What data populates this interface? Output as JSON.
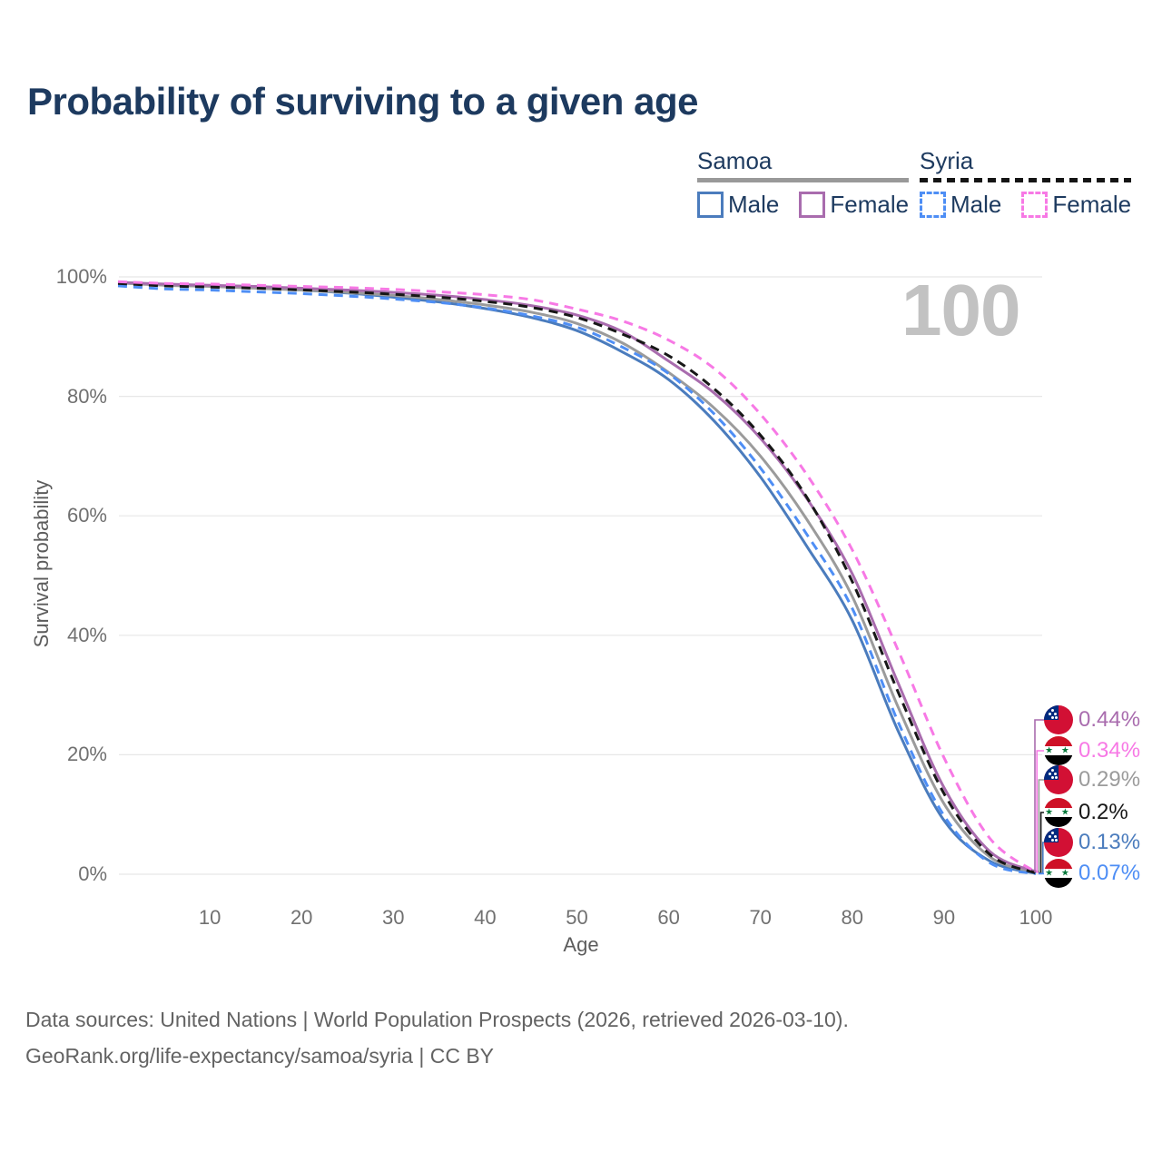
{
  "title": "Probability of surviving to a given age",
  "watermark": "100",
  "legend": {
    "groups": [
      {
        "country": "Samoa",
        "line_style": "solid",
        "underline_color": "#999999",
        "items": [
          {
            "label": "Male",
            "color": "#4b7cbd",
            "series": "samoa_male"
          },
          {
            "label": "Female",
            "color": "#a96cae",
            "series": "samoa_female"
          }
        ]
      },
      {
        "country": "Syria",
        "line_style": "dashed",
        "underline_color": "#141414",
        "items": [
          {
            "label": "Male",
            "color": "#4e8ef5",
            "series": "syria_male"
          },
          {
            "label": "Female",
            "color": "#f779e5",
            "series": "syria_female"
          }
        ]
      }
    ]
  },
  "axes": {
    "y_label": "Survival probability",
    "y_tick_values": [
      0,
      20,
      40,
      60,
      80,
      100
    ],
    "y_tick_labels": [
      "0%",
      "20%",
      "40%",
      "60%",
      "80%",
      "100%"
    ],
    "x_label": "Age",
    "x_tick_values": [
      10,
      20,
      30,
      40,
      50,
      60,
      70,
      80,
      90,
      100
    ],
    "x_tick_labels": [
      "10",
      "20",
      "30",
      "40",
      "50",
      "60",
      "70",
      "80",
      "90",
      "100"
    ]
  },
  "end_labels": [
    {
      "flag": "samoa",
      "text": "0.44%",
      "series": "samoa_female"
    },
    {
      "flag": "syria",
      "text": "0.34%",
      "series": "syria_female"
    },
    {
      "flag": "samoa",
      "text": "0.29%",
      "series": "samoa_all"
    },
    {
      "flag": "syria",
      "text": "0.2%",
      "series": "syria_all"
    },
    {
      "flag": "samoa",
      "text": "0.13%",
      "series": "samoa_male"
    },
    {
      "flag": "syria",
      "text": "0.07%",
      "series": "syria_male"
    }
  ],
  "footer": {
    "line1": "Data sources: United Nations | World Population Prospects (2026, retrieved 2026-03-10).",
    "line2": "GeoRank.org/life-expectancy/samoa/syria | CC BY"
  },
  "chart_data": {
    "type": "line",
    "title": "Probability of surviving to a given age",
    "xlabel": "Age",
    "ylabel": "Survival probability",
    "unit": "%",
    "xlim": [
      0,
      100
    ],
    "ylim": [
      0,
      100
    ],
    "grid": "horizontal",
    "legend_position": "top-right",
    "x": [
      0,
      5,
      10,
      15,
      20,
      25,
      30,
      35,
      40,
      45,
      50,
      55,
      60,
      65,
      70,
      75,
      80,
      85,
      90,
      95,
      100
    ],
    "series": [
      {
        "id": "samoa_male",
        "name": "Samoa Male",
        "country": "Samoa",
        "sex": "Male",
        "style": "solid",
        "color": "#4b7cbd",
        "end_label": "0.13%",
        "values": [
          99.0,
          98.7,
          98.5,
          98.2,
          97.8,
          97.3,
          96.6,
          95.8,
          94.7,
          93.2,
          91.0,
          87.4,
          82.8,
          75.8,
          66.5,
          55.0,
          42.5,
          24.0,
          9.0,
          2.2,
          0.13
        ]
      },
      {
        "id": "samoa_all",
        "name": "Samoa",
        "country": "Samoa",
        "sex": "All",
        "style": "solid",
        "color": "#9b9b9b",
        "end_label": "0.29%",
        "values": [
          99.0,
          98.6,
          98.4,
          98.1,
          97.8,
          97.4,
          96.9,
          96.2,
          95.3,
          94.1,
          92.2,
          88.9,
          84.0,
          78.0,
          70.0,
          59.5,
          46.5,
          28.0,
          11.8,
          2.9,
          0.29
        ]
      },
      {
        "id": "samoa_female",
        "name": "Samoa Female",
        "country": "Samoa",
        "sex": "Female",
        "style": "solid",
        "color": "#a96cae",
        "end_label": "0.44%",
        "values": [
          99.1,
          98.8,
          98.6,
          98.4,
          98.1,
          97.8,
          97.4,
          96.9,
          96.2,
          95.2,
          93.6,
          90.8,
          85.9,
          80.5,
          73.0,
          63.0,
          50.3,
          32.0,
          14.5,
          3.8,
          0.44
        ]
      },
      {
        "id": "syria_male",
        "name": "Syria Male",
        "country": "Syria",
        "sex": "Male",
        "style": "dashed",
        "color": "#4e8ef5",
        "end_label": "0.07%",
        "values": [
          98.5,
          98.0,
          97.8,
          97.5,
          97.2,
          96.8,
          96.3,
          95.7,
          94.8,
          93.5,
          91.6,
          88.2,
          83.8,
          77.0,
          68.0,
          57.0,
          44.5,
          25.5,
          9.8,
          1.9,
          0.07
        ]
      },
      {
        "id": "syria_all",
        "name": "Syria",
        "country": "Syria",
        "sex": "All",
        "style": "dashed",
        "color": "#171717",
        "end_label": "0.2%",
        "values": [
          98.9,
          98.5,
          98.3,
          98.1,
          97.8,
          97.5,
          97.1,
          96.6,
          95.9,
          94.9,
          93.2,
          90.4,
          86.8,
          81.2,
          73.5,
          63.2,
          49.0,
          30.5,
          13.5,
          3.3,
          0.2
        ]
      },
      {
        "id": "syria_female",
        "name": "Syria Female",
        "country": "Syria",
        "sex": "Female",
        "style": "dashed",
        "color": "#f779e5",
        "end_label": "0.34%",
        "values": [
          99.2,
          98.9,
          98.8,
          98.6,
          98.4,
          98.2,
          97.9,
          97.5,
          97.0,
          96.2,
          94.6,
          92.6,
          89.4,
          84.6,
          77.0,
          67.0,
          54.3,
          37.5,
          19.5,
          6.0,
          0.34
        ]
      }
    ]
  }
}
